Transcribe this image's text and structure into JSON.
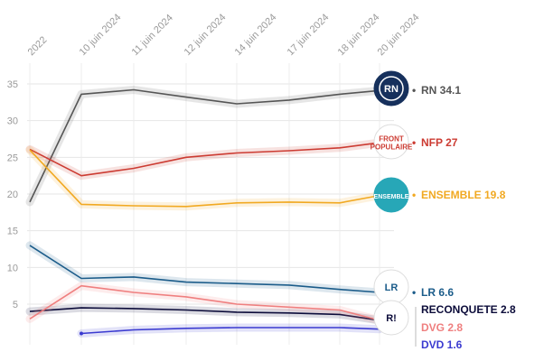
{
  "chart_data": {
    "type": "line",
    "categories": [
      "2022",
      "10 juin 2024",
      "11 juin 2024",
      "12 juin 2024",
      "14 juin 2024",
      "17 juin 2024",
      "18 juin 2024",
      "20 juin 2024"
    ],
    "yticks": [
      5,
      10,
      15,
      20,
      25,
      30,
      35
    ],
    "ylim": [
      0,
      37.5
    ],
    "grid": true,
    "series": [
      {
        "name": "RN",
        "label": "RN 34.1",
        "color": "#555555",
        "logo_text": "RN",
        "values": [
          18.9,
          33.6,
          34.2,
          33.2,
          32.3,
          32.8,
          33.6,
          34.1
        ]
      },
      {
        "name": "NFP",
        "label": "NFP 27",
        "color": "#cc3b32",
        "logo_text": "FRONT POPULAIRE",
        "values": [
          26.1,
          22.5,
          23.5,
          25.0,
          25.6,
          25.9,
          26.3,
          27.0
        ]
      },
      {
        "name": "ENSEMBLE",
        "label": "ENSEMBLE 19.8",
        "color": "#f1a922",
        "logo_text": "ENSEMBLE",
        "values": [
          26.0,
          18.6,
          18.4,
          18.3,
          18.8,
          18.9,
          18.8,
          19.8
        ]
      },
      {
        "name": "LR",
        "label": "LR 6.6",
        "color": "#1b5c8a",
        "logo_text": "LR",
        "values": [
          13.0,
          8.5,
          8.7,
          8.0,
          7.8,
          7.6,
          7.0,
          6.6
        ]
      },
      {
        "name": "RECONQUETE",
        "label": "RECONQUETE 2.8",
        "color": "#0c0c3a",
        "logo_text": "R!",
        "values": [
          4.0,
          4.5,
          4.4,
          4.2,
          3.9,
          3.8,
          3.6,
          2.8
        ]
      },
      {
        "name": "DVG",
        "label": "DVG 2.8",
        "color": "#ef7f7f",
        "logo_text": "",
        "values": [
          3.0,
          7.5,
          6.6,
          6.0,
          5.0,
          4.6,
          4.2,
          2.8
        ]
      },
      {
        "name": "DVD",
        "label": "DVD 1.6",
        "color": "#3a3ad0",
        "logo_text": "",
        "values": [
          null,
          1.0,
          1.5,
          1.7,
          1.8,
          1.8,
          1.8,
          1.6
        ]
      }
    ]
  }
}
